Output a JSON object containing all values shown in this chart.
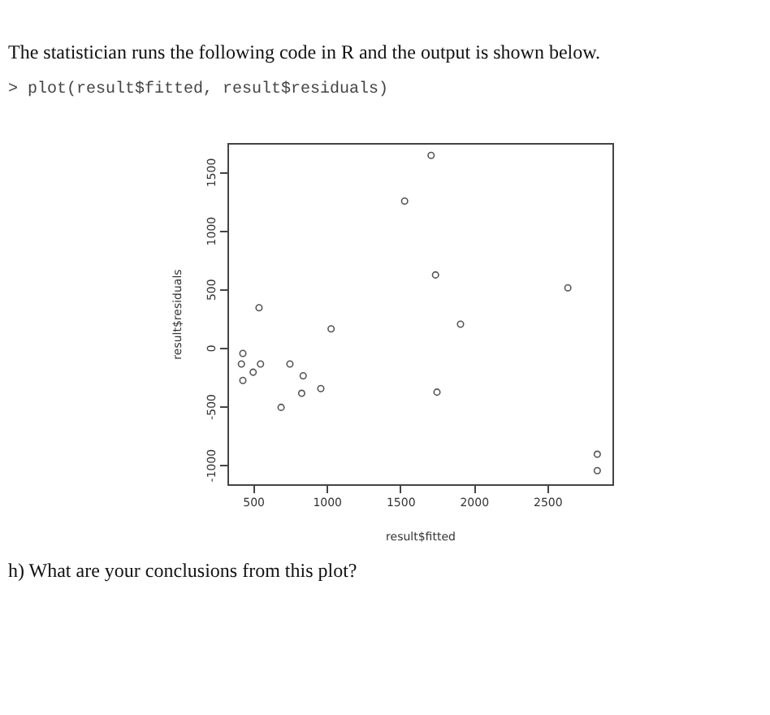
{
  "chart_data": {
    "type": "scatter",
    "title": "The statistician runs the following code in R and the output is shown below.",
    "subtitle": "> plot(result$fitted, result$residuals)",
    "annotations": [
      "h) What are your conclusions from this plot?"
    ],
    "xlabel": "result$fitted",
    "ylabel": "result$residuals",
    "marker": "circle",
    "grid": false,
    "legend": false,
    "xlim": [
      325,
      2943
    ],
    "ylim": [
      -1166,
      1746
    ],
    "xticks": [
      500,
      1000,
      1500,
      2000,
      2500
    ],
    "yticks": [
      -1000,
      -500,
      0,
      500,
      1000,
      1500
    ],
    "series": [
      {
        "color": "#555555",
        "x": [
          420,
          430,
          430,
          500,
          540,
          550,
          690,
          750,
          840,
          830,
          960,
          1030,
          1530,
          1710,
          1740,
          1750,
          1910,
          2640,
          2840,
          2840
        ],
        "values": [
          -140,
          -50,
          -280,
          -210,
          340,
          -140,
          -510,
          -140,
          -240,
          -390,
          -350,
          160,
          1250,
          1640,
          620,
          -380,
          200,
          510,
          -910,
          -1050
        ]
      }
    ]
  }
}
